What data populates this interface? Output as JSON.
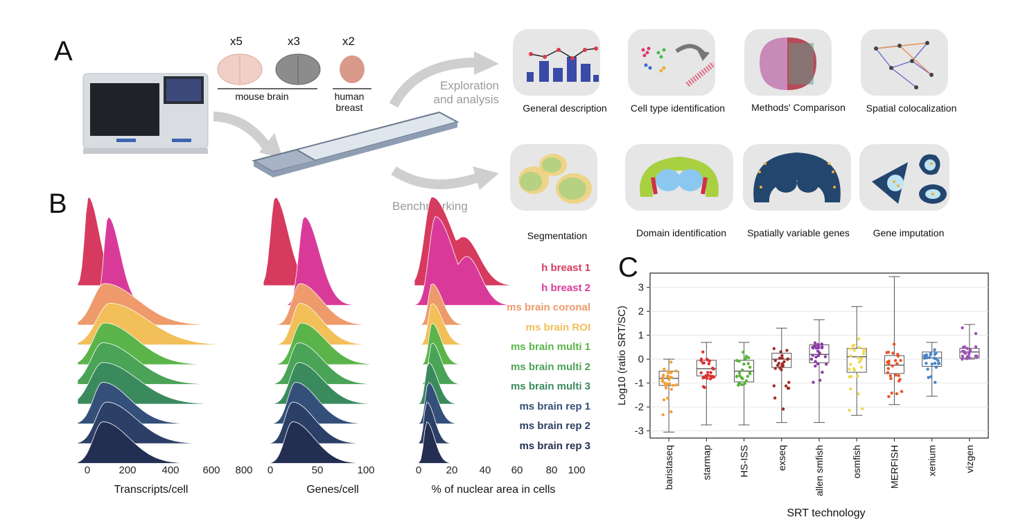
{
  "panel_a": {
    "letter": "A",
    "multipliers": [
      "x5",
      "x3",
      "x2"
    ],
    "sample_labels": {
      "mouse": "mouse  brain",
      "human": "human\nbreast"
    },
    "arrow_labels": {
      "top": "Exploration\nand analysis",
      "bottom": "Benchmarking"
    },
    "tiles_top": [
      {
        "caption": "General description",
        "icon": "bar-line-chart-icon"
      },
      {
        "caption": "Cell type identification",
        "icon": "cluster-scatter-icon"
      },
      {
        "caption": "Methods' Comparison",
        "icon": "brain-section-comparison-icon"
      },
      {
        "caption": "Spatial colocalization",
        "icon": "network-graph-icon"
      }
    ],
    "tiles_bottom": [
      {
        "caption": "Segmentation",
        "icon": "cell-segmentation-icon"
      },
      {
        "caption": "Domain identification",
        "icon": "brain-domains-icon"
      },
      {
        "caption": "Spatially variable genes",
        "icon": "brain-spots-icon"
      },
      {
        "caption": "Gene imputation",
        "icon": "cells-imputation-icon"
      }
    ]
  },
  "panel_b": {
    "letter": "B",
    "series": [
      {
        "name": "h breast 1",
        "color": "#d63a5e"
      },
      {
        "name": "h breast 2",
        "color": "#d93a9a"
      },
      {
        "name": "ms brain  coronal",
        "color": "#ee9a6a"
      },
      {
        "name": "ms brain ROI",
        "color": "#f2bf58"
      },
      {
        "name": "ms brain multi 1",
        "color": "#5ab44a"
      },
      {
        "name": "ms brain multi 2",
        "color": "#4aa356"
      },
      {
        "name": "ms brain multi 3",
        "color": "#3a8a5e"
      },
      {
        "name": "ms brain rep 1",
        "color": "#34507a"
      },
      {
        "name": "ms brain rep 2",
        "color": "#2c3f66"
      },
      {
        "name": "ms brain rep 3",
        "color": "#232f52"
      }
    ],
    "plots": [
      {
        "xlabel": "Transcripts/cell",
        "ticks": [
          "0",
          "200",
          "400",
          "600",
          "800"
        ]
      },
      {
        "xlabel": "Genes/cell",
        "ticks": [
          "0",
          "50",
          "100"
        ]
      },
      {
        "xlabel": "% of nuclear area in cells",
        "ticks": [
          "0",
          "20",
          "40",
          "60",
          "80",
          "100"
        ]
      }
    ]
  },
  "chart_data": {
    "type": "box",
    "title": "",
    "xlabel": "SRT  technology",
    "ylabel": "Log10 (ratio SRT/SC)",
    "ylim": [
      -3.3,
      3.6
    ],
    "yticks": [
      "3",
      "2",
      "1",
      "0",
      "-1",
      "-2",
      "-3"
    ],
    "grid": true,
    "categories": [
      "baristaseq",
      "starmap",
      "HS-ISS",
      "exseq",
      "allen smfish",
      "osmfish",
      "MERFISH",
      "xenium",
      "vizgen"
    ],
    "colors": [
      "#f2a03a",
      "#e03030",
      "#5ab43a",
      "#a02a2a",
      "#8a3aa8",
      "#f0d850",
      "#e8552a",
      "#4a86c8",
      "#a050b8"
    ],
    "boxes": [
      {
        "min": -3.05,
        "q1": -1.1,
        "median": -0.8,
        "q3": -0.5,
        "max": 0.0
      },
      {
        "min": -2.75,
        "q1": -0.7,
        "median": -0.4,
        "q3": -0.05,
        "max": 0.7
      },
      {
        "min": -2.75,
        "q1": -0.95,
        "median": -0.5,
        "q3": -0.05,
        "max": 0.7
      },
      {
        "min": -2.65,
        "q1": -0.35,
        "median": 0.0,
        "q3": 0.25,
        "max": 1.3
      },
      {
        "min": -2.65,
        "q1": -0.15,
        "median": 0.2,
        "q3": 0.6,
        "max": 1.65
      },
      {
        "min": -2.35,
        "q1": -0.55,
        "median": 0.1,
        "q3": 0.45,
        "max": 2.2
      },
      {
        "min": -1.9,
        "q1": -0.6,
        "median": -0.25,
        "q3": 0.15,
        "max": 3.45
      },
      {
        "min": -1.55,
        "q1": -0.3,
        "median": 0.05,
        "q3": 0.3,
        "max": 0.7
      },
      {
        "min": 0.0,
        "q1": 0.05,
        "median": 0.3,
        "q3": 0.45,
        "max": 1.45
      }
    ]
  },
  "panel_c_letter": "C"
}
